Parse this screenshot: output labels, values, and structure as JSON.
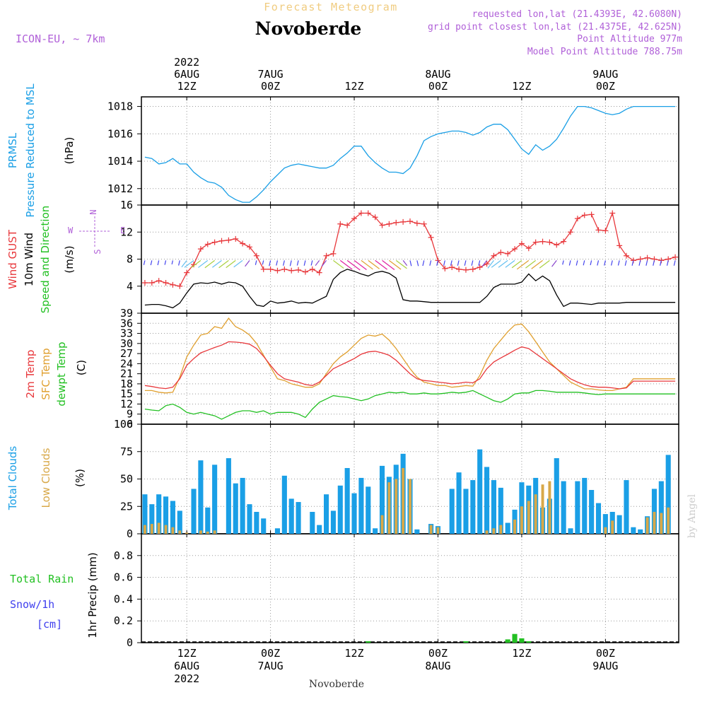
{
  "header": {
    "overtitle": "Forecast Meteogram",
    "title": "Novoberde",
    "model": "ICON-EU, ~ 7km",
    "requested": "requested lon,lat (21.4393E, 42.6080N)",
    "gridpoint": "grid point closest lon,lat (21.4375E, 42.625N)",
    "point_alt": "Point Altitude 977m",
    "model_alt": "Model Point Altitude 788.75m",
    "footer_name": "Novoberde",
    "watermark": "by Angel"
  },
  "colors": {
    "pressure": "#1a9fe6",
    "gust": "#e8383c",
    "wind": "#000000",
    "temp2m": "#e8383c",
    "sfc": "#e0a030",
    "dewpt": "#22c022",
    "total_clouds": "#1a9fe6",
    "low_clouds": "#d8a848",
    "rain": "#22c022",
    "snow": "#4040ee",
    "model_label": "#b060d8"
  },
  "time_axis": {
    "top_labels": [
      {
        "t": 6,
        "lines": [
          "2022",
          "6AUG",
          "12Z"
        ]
      },
      {
        "t": 18,
        "lines": [
          "7AUG",
          "00Z"
        ]
      },
      {
        "t": 30,
        "lines": [
          "12Z"
        ]
      },
      {
        "t": 42,
        "lines": [
          "8AUG",
          "00Z"
        ]
      },
      {
        "t": 54,
        "lines": [
          "12Z"
        ]
      },
      {
        "t": 66,
        "lines": [
          "9AUG",
          "00Z"
        ]
      }
    ],
    "bottom_labels": [
      {
        "t": 6,
        "lines": [
          "12Z",
          "6AUG",
          "2022"
        ]
      },
      {
        "t": 18,
        "lines": [
          "00Z",
          "7AUG"
        ]
      },
      {
        "t": 30,
        "lines": [
          "12Z"
        ]
      },
      {
        "t": 42,
        "lines": [
          "00Z",
          "8AUG"
        ]
      },
      {
        "t": 54,
        "lines": [
          "12Z"
        ]
      },
      {
        "t": 66,
        "lines": [
          "00Z",
          "9AUG"
        ]
      }
    ]
  },
  "panel_labels": {
    "pressure": {
      "lines": [
        "PRMSL",
        "Pressure Reduced to MSL"
      ],
      "unit": "(hPa)"
    },
    "wind": {
      "gust": "Wind GUST",
      "wind": "10m Wind",
      "speed_dir": "Speed and Direction",
      "unit": "(m/s)",
      "compass_n": "N",
      "compass_s": "S",
      "compass_w": "W",
      "compass_e": "E"
    },
    "temp": {
      "t2m": "2m Temp",
      "sfc": "SFC Temp",
      "dewpt": "dewpt Temp",
      "unit": "(C)"
    },
    "clouds": {
      "total": "Total Clouds",
      "low": "Low Clouds",
      "unit": "(%)"
    },
    "precip": {
      "total_rain": "Total  Rain",
      "snow": "Snow/1h",
      "cm": "[cm]",
      "ylabel": "1hr Precip (mm)"
    }
  },
  "chart_data": [
    {
      "type": "line",
      "title": "PRMSL Pressure Reduced to MSL",
      "ylabel": "(hPa)",
      "ylim": [
        1010.8,
        1018.7
      ],
      "yticks": [
        1012,
        1014,
        1016,
        1018
      ],
      "x_hours": [
        0,
        1,
        2,
        3,
        4,
        5,
        6,
        7,
        8,
        9,
        10,
        11,
        12,
        13,
        14,
        15,
        16,
        17,
        18,
        19,
        20,
        21,
        22,
        23,
        24,
        25,
        26,
        27,
        28,
        29,
        30,
        31,
        32,
        33,
        34,
        35,
        36,
        37,
        38,
        39,
        40,
        41,
        42,
        43,
        44,
        45,
        46,
        47,
        48,
        49,
        50,
        51,
        52,
        53,
        54,
        55,
        56,
        57,
        58,
        59,
        60,
        61,
        62,
        63,
        64,
        65,
        66,
        67,
        68,
        69,
        70,
        71,
        72,
        73,
        74,
        75,
        76
      ],
      "series": [
        {
          "values": [
            1014.3,
            1014.2,
            1013.8,
            1013.9,
            1014.2,
            1013.8,
            1013.8,
            1013.2,
            1012.8,
            1012.5,
            1012.4,
            1012.1,
            1011.5,
            1011.2,
            1011.0,
            1011.0,
            1011.4,
            1011.9,
            1012.5,
            1013.0,
            1013.5,
            1013.7,
            1013.8,
            1013.7,
            1013.6,
            1013.5,
            1013.5,
            1013.7,
            1014.2,
            1014.6,
            1015.1,
            1015.1,
            1014.4,
            1013.9,
            1013.5,
            1013.2,
            1013.2,
            1013.1,
            1013.5,
            1014.4,
            1015.5,
            1015.8,
            1016.0,
            1016.1,
            1016.2,
            1016.2,
            1016.1,
            1015.9,
            1016.1,
            1016.5,
            1016.7,
            1016.7,
            1016.3,
            1015.6,
            1014.9,
            1014.5,
            1015.2,
            1014.8,
            1015.1,
            1015.6,
            1016.4,
            1017.3,
            1018.0,
            1018.0,
            1017.9,
            1017.7,
            1017.5,
            1017.4,
            1017.5,
            1017.8,
            1018.0,
            1018.0,
            1018.0,
            1018.0,
            1018.0,
            1018.0,
            1018.0
          ]
        }
      ]
    },
    {
      "type": "line",
      "title": "Wind GUST / 10m Wind Speed and Direction",
      "ylabel": "(m/s)",
      "ylim": [
        0,
        16
      ],
      "yticks": [
        4,
        8,
        12,
        16
      ],
      "x_hours": [
        0,
        1,
        2,
        3,
        4,
        5,
        6,
        7,
        8,
        9,
        10,
        11,
        12,
        13,
        14,
        15,
        16,
        17,
        18,
        19,
        20,
        21,
        22,
        23,
        24,
        25,
        26,
        27,
        28,
        29,
        30,
        31,
        32,
        33,
        34,
        35,
        36,
        37,
        38,
        39,
        40,
        41,
        42,
        43,
        44,
        45,
        46,
        47,
        48,
        49,
        50,
        51,
        52,
        53,
        54,
        55,
        56,
        57,
        58,
        59,
        60,
        61,
        62,
        63,
        64,
        65,
        66,
        67,
        68,
        69,
        70,
        71,
        72,
        73,
        74,
        75,
        76
      ],
      "series": [
        {
          "name": "Wind GUST",
          "values": [
            4.5,
            4.5,
            4.8,
            4.5,
            4.2,
            4.0,
            6.0,
            7.2,
            9.5,
            10.2,
            10.5,
            10.7,
            10.8,
            11.0,
            10.3,
            9.8,
            8.5,
            6.5,
            6.5,
            6.3,
            6.5,
            6.3,
            6.4,
            6.1,
            6.5,
            6.0,
            8.5,
            8.8,
            13.2,
            13.0,
            14.0,
            14.8,
            14.8,
            14.2,
            13.0,
            13.2,
            13.4,
            13.5,
            13.6,
            13.3,
            13.2,
            11.2,
            7.8,
            6.6,
            6.8,
            6.5,
            6.4,
            6.5,
            6.8,
            7.3,
            8.5,
            9.0,
            8.8,
            9.5,
            10.3,
            9.6,
            10.5,
            10.6,
            10.5,
            10.1,
            10.6,
            12.0,
            14.0,
            14.5,
            14.6,
            12.3,
            12.2,
            14.8,
            10.0,
            8.5,
            7.8,
            8.0,
            8.2,
            8.0,
            7.8,
            8.0,
            8.3
          ]
        },
        {
          "name": "10m Wind",
          "values": [
            1.2,
            1.3,
            1.3,
            1.1,
            0.8,
            1.5,
            3.0,
            4.3,
            4.5,
            4.4,
            4.6,
            4.3,
            4.6,
            4.5,
            4.0,
            2.5,
            1.2,
            1.0,
            1.8,
            1.5,
            1.6,
            1.8,
            1.5,
            1.6,
            1.5,
            2.0,
            2.5,
            5.0,
            6.0,
            6.5,
            6.2,
            5.8,
            5.5,
            6.0,
            6.2,
            5.9,
            5.2,
            2.0,
            1.8,
            1.8,
            1.7,
            1.6,
            1.6,
            1.6,
            1.6,
            1.6,
            1.6,
            1.6,
            1.6,
            2.5,
            3.8,
            4.3,
            4.3,
            4.3,
            4.6,
            5.8,
            4.8,
            5.5,
            4.8,
            2.7,
            1.0,
            1.5,
            1.5,
            1.4,
            1.3,
            1.5,
            1.5,
            1.5,
            1.5,
            1.6,
            1.6,
            1.6,
            1.6,
            1.6,
            1.6,
            1.6,
            1.6
          ]
        }
      ]
    },
    {
      "type": "line",
      "title": "2m Temp / SFC Temp / dewpt Temp",
      "ylabel": "(C)",
      "ylim": [
        6,
        39
      ],
      "yticks": [
        6,
        9,
        12,
        15,
        18,
        21,
        24,
        27,
        30,
        33,
        36,
        39
      ],
      "x_hours": [
        0,
        1,
        2,
        3,
        4,
        5,
        6,
        7,
        8,
        9,
        10,
        11,
        12,
        13,
        14,
        15,
        16,
        17,
        18,
        19,
        20,
        21,
        22,
        23,
        24,
        25,
        26,
        27,
        28,
        29,
        30,
        31,
        32,
        33,
        34,
        35,
        36,
        37,
        38,
        39,
        40,
        41,
        42,
        43,
        44,
        45,
        46,
        47,
        48,
        49,
        50,
        51,
        52,
        53,
        54,
        55,
        56,
        57,
        58,
        59,
        60,
        61,
        62,
        63,
        64,
        65,
        66,
        67,
        68,
        69,
        70,
        71,
        72,
        73,
        74,
        75,
        76
      ],
      "series": [
        {
          "name": "2m Temp",
          "values": [
            17.5,
            17.2,
            16.8,
            16.6,
            17.0,
            19.5,
            23.5,
            25.5,
            27.2,
            28.0,
            28.8,
            29.5,
            30.5,
            30.4,
            30.2,
            29.8,
            28.5,
            26.2,
            23.5,
            21.0,
            19.5,
            19.0,
            18.5,
            17.8,
            17.5,
            18.5,
            20.5,
            22.5,
            23.5,
            24.5,
            25.5,
            26.8,
            27.5,
            27.7,
            27.2,
            26.5,
            25.0,
            23.0,
            21.0,
            19.5,
            19.0,
            18.8,
            18.5,
            18.3,
            18.0,
            18.2,
            18.5,
            18.3,
            19.5,
            22.5,
            24.5,
            25.7,
            26.8,
            28.0,
            29.0,
            28.5,
            27.0,
            25.5,
            24.0,
            22.5,
            21.0,
            19.5,
            18.5,
            17.7,
            17.2,
            17.0,
            17.0,
            16.8,
            16.5,
            16.8,
            18.8,
            18.8,
            18.8,
            18.8,
            18.8,
            18.8,
            18.8
          ]
        },
        {
          "name": "SFC Temp",
          "values": [
            16.0,
            16.0,
            15.5,
            15.3,
            15.5,
            20.0,
            26.0,
            29.5,
            32.5,
            33.0,
            35.0,
            34.5,
            37.5,
            35.0,
            34.0,
            32.5,
            30.0,
            26.5,
            23.0,
            19.5,
            19.0,
            18.0,
            17.5,
            17.0,
            17.0,
            18.0,
            21.0,
            24.0,
            26.0,
            27.5,
            29.5,
            31.5,
            32.5,
            32.2,
            32.8,
            31.0,
            28.5,
            25.5,
            22.5,
            20.0,
            18.5,
            18.0,
            17.5,
            17.5,
            17.0,
            17.2,
            17.5,
            17.3,
            20.5,
            25.0,
            28.5,
            31.0,
            33.5,
            35.5,
            35.8,
            33.5,
            30.5,
            27.5,
            24.5,
            22.5,
            20.5,
            18.5,
            17.5,
            16.5,
            16.5,
            16.2,
            16.0,
            16.0,
            16.5,
            17.0,
            19.5,
            19.5,
            19.5,
            19.5,
            19.5,
            19.5,
            19.5
          ]
        },
        {
          "name": "dewpt Temp",
          "values": [
            10.5,
            10.2,
            10.0,
            11.5,
            12.0,
            11.0,
            9.5,
            9.0,
            9.5,
            9.0,
            8.5,
            7.5,
            8.5,
            9.5,
            10.0,
            10.0,
            9.5,
            10.0,
            9.0,
            9.5,
            9.5,
            9.5,
            9.0,
            8.0,
            10.5,
            12.5,
            13.5,
            14.5,
            14.2,
            14.0,
            13.5,
            13.0,
            13.5,
            14.5,
            15.0,
            15.5,
            15.3,
            15.5,
            15.0,
            15.0,
            15.3,
            15.0,
            15.0,
            15.2,
            15.5,
            15.3,
            15.5,
            16.0,
            15.0,
            14.0,
            13.0,
            12.5,
            13.5,
            15.0,
            15.3,
            15.3,
            16.0,
            16.0,
            15.8,
            15.5,
            15.5,
            15.5,
            15.5,
            15.3,
            15.0,
            14.8,
            15.0,
            15.0,
            15.0,
            15.0,
            15.0,
            15.0,
            15.0,
            15.0,
            15.0,
            15.0,
            15.0
          ]
        }
      ]
    },
    {
      "type": "bar",
      "title": "Total Clouds / Low Clouds",
      "ylabel": "(%)",
      "ylim": [
        0,
        100
      ],
      "yticks": [
        0,
        25,
        50,
        75,
        100
      ],
      "x_hours": [
        0,
        1,
        2,
        3,
        4,
        5,
        6,
        7,
        8,
        9,
        10,
        11,
        12,
        13,
        14,
        15,
        16,
        17,
        18,
        19,
        20,
        21,
        22,
        23,
        24,
        25,
        26,
        27,
        28,
        29,
        30,
        31,
        32,
        33,
        34,
        35,
        36,
        37,
        38,
        39,
        40,
        41,
        42,
        43,
        44,
        45,
        46,
        47,
        48,
        49,
        50,
        51,
        52,
        53,
        54,
        55,
        56,
        57,
        58,
        59,
        60,
        61,
        62,
        63,
        64,
        65,
        66,
        67,
        68,
        69,
        70,
        71,
        72,
        73,
        74,
        75,
        76
      ],
      "series": [
        {
          "name": "Total Clouds",
          "values": [
            36,
            27,
            36,
            34,
            30,
            21,
            0,
            41,
            67,
            24,
            63,
            0,
            69,
            46,
            51,
            27,
            20,
            14,
            0,
            5,
            53,
            32,
            29,
            0,
            20,
            8,
            36,
            21,
            44,
            60,
            37,
            51,
            43,
            5,
            62,
            52,
            63,
            73,
            50,
            4,
            0,
            9,
            7,
            0,
            41,
            56,
            41,
            49,
            77,
            61,
            49,
            42,
            10,
            22,
            47,
            44,
            51,
            24,
            32,
            69,
            48,
            5,
            48,
            51,
            40,
            28,
            18,
            20,
            17,
            49,
            6,
            4,
            16,
            41,
            48,
            72,
            0
          ]
        },
        {
          "name": "Low Clouds",
          "values": [
            8,
            9,
            10,
            8,
            6,
            3,
            1,
            0,
            3,
            2,
            3,
            0,
            0,
            0,
            0,
            0,
            0,
            0,
            0,
            0,
            0,
            0,
            0,
            0,
            0,
            0,
            0,
            0,
            0,
            0,
            0,
            0,
            0,
            0,
            17,
            47,
            50,
            60,
            50,
            0,
            0,
            8,
            6,
            0,
            0,
            0,
            0,
            0,
            0,
            3,
            5,
            8,
            0,
            13,
            25,
            30,
            36,
            45,
            48,
            0,
            0,
            0,
            0,
            0,
            0,
            0,
            6,
            12,
            0,
            0,
            0,
            0,
            15,
            20,
            19,
            24,
            0
          ]
        }
      ]
    },
    {
      "type": "bar",
      "title": "Total Rain / Snow",
      "ylabel": "1hr Precip (mm)",
      "ylim": [
        0,
        1.0
      ],
      "yticks": [
        0,
        0.2,
        0.4,
        0.6,
        0.8
      ],
      "x_hours": [
        32,
        46,
        52,
        53,
        54,
        55
      ],
      "series": [
        {
          "name": "Total Rain",
          "values": [
            0.01,
            0.005,
            0.03,
            0.08,
            0.04,
            0.01
          ]
        }
      ]
    }
  ]
}
